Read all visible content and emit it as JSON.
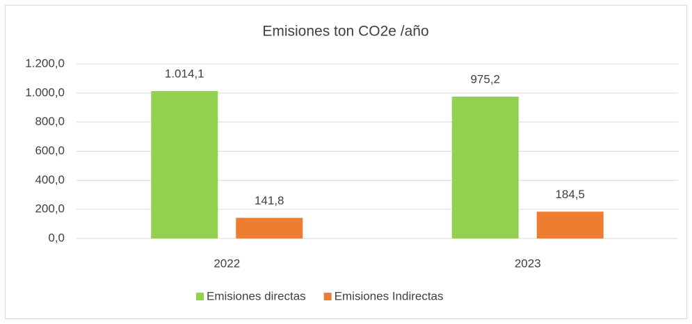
{
  "chart_data": {
    "type": "bar",
    "title": "Emisiones ton CO2e /año",
    "categories": [
      "2022",
      "2023"
    ],
    "series": [
      {
        "name": "Emisiones directas",
        "color": "#92d050",
        "values": [
          1014.1,
          975.2
        ],
        "value_labels": [
          "1.014,1",
          "975,2"
        ]
      },
      {
        "name": "Emisiones Indirectas",
        "color": "#ed7d31",
        "values": [
          141.8,
          184.5
        ],
        "value_labels": [
          "141,8",
          "184,5"
        ]
      }
    ],
    "ylim": [
      0,
      1200
    ],
    "yticks": [
      {
        "value": 0,
        "label": "0,0"
      },
      {
        "value": 200,
        "label": "200,0"
      },
      {
        "value": 400,
        "label": "400,0"
      },
      {
        "value": 600,
        "label": "600,0"
      },
      {
        "value": 800,
        "label": "800,0"
      },
      {
        "value": 1000,
        "label": "1.000,0"
      },
      {
        "value": 1200,
        "label": "1.200,0"
      }
    ],
    "grid": true,
    "legend": "bottom"
  }
}
